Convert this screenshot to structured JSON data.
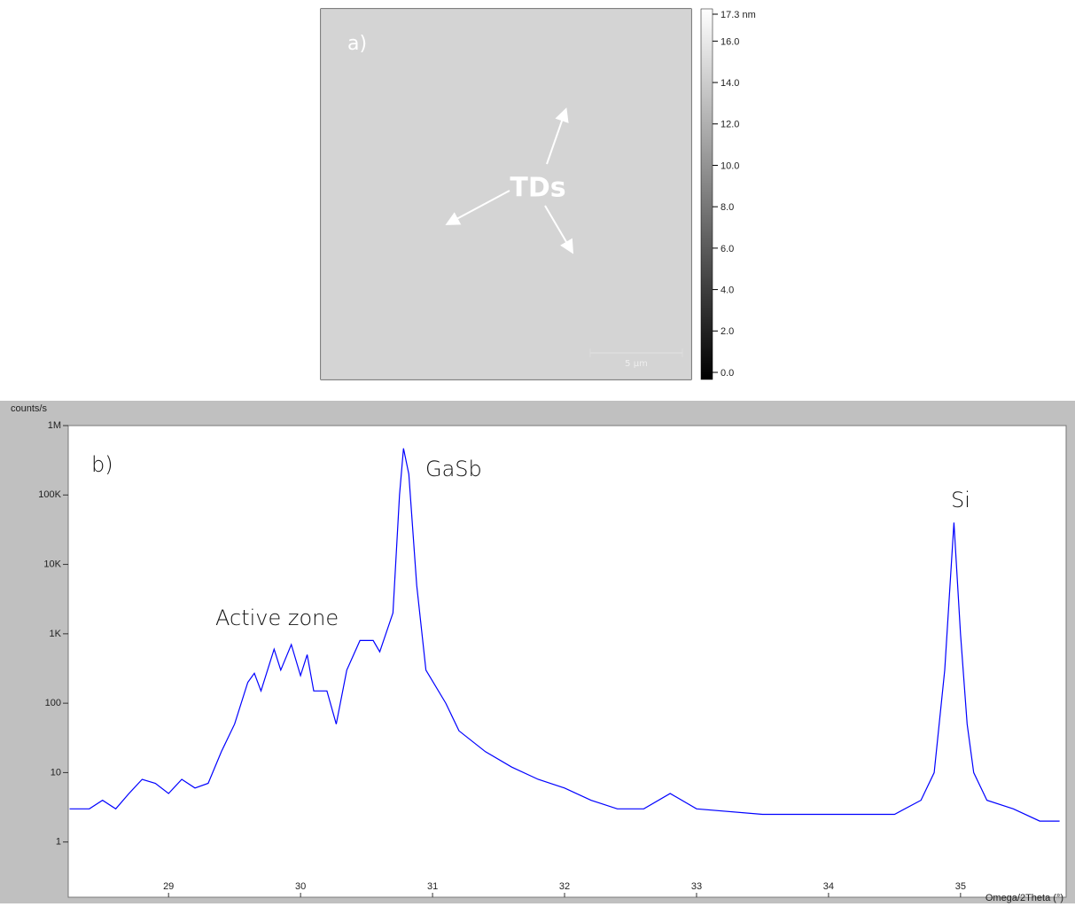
{
  "chart_data": [
    {
      "type": "image",
      "panel_label": "a)",
      "annotation": "TDs",
      "scale_bar": "5 µm",
      "ylim": [
        0,
        17.3
      ],
      "yticks": [
        {
          "value": 0,
          "label": "0.0"
        },
        {
          "value": 2,
          "label": "2.0"
        },
        {
          "value": 4,
          "label": "4.0"
        },
        {
          "value": 6,
          "label": "6.0"
        },
        {
          "value": 8,
          "label": "8.0"
        },
        {
          "value": 10,
          "label": "10.0"
        },
        {
          "value": 12,
          "label": "12.0"
        },
        {
          "value": 14,
          "label": "14.0"
        },
        {
          "value": 16,
          "label": "16.0"
        },
        {
          "value": 17.3,
          "label": "17.3 nm"
        }
      ]
    },
    {
      "type": "line",
      "panel_label": "b)",
      "ylabel": "counts/s",
      "xlabel": "Omega/2Theta (°)",
      "annotations": [
        "GaSb",
        "Si",
        "Active zone"
      ],
      "log_y": true,
      "color": "#0000ff",
      "xlim": [
        28.24,
        35.8
      ],
      "ylim": [
        0.16,
        1000000
      ],
      "xticks": [
        29,
        30,
        31,
        32,
        33,
        34,
        35
      ],
      "yticks": [
        1,
        10,
        100,
        {
          "value": 1000,
          "label": "1K"
        },
        {
          "value": 10000,
          "label": "10K"
        },
        {
          "value": 100000,
          "label": "100K"
        },
        {
          "value": 1000000,
          "label": "1M"
        }
      ],
      "x": [
        28.25,
        28.4,
        28.5,
        28.6,
        28.7,
        28.8,
        28.9,
        29.0,
        29.1,
        29.2,
        29.3,
        29.4,
        29.5,
        29.6,
        29.65,
        29.7,
        29.8,
        29.85,
        29.93,
        30.0,
        30.05,
        30.1,
        30.2,
        30.27,
        30.35,
        30.45,
        30.55,
        30.6,
        30.7,
        30.75,
        30.78,
        30.82,
        30.88,
        30.95,
        31.1,
        31.2,
        31.4,
        31.6,
        31.8,
        32.0,
        32.2,
        32.4,
        32.6,
        32.8,
        33.0,
        33.5,
        34.0,
        34.5,
        34.7,
        34.8,
        34.88,
        34.95,
        35.0,
        35.05,
        35.1,
        35.2,
        35.4,
        35.6,
        35.75
      ],
      "values": [
        3,
        3,
        4,
        3,
        5,
        8,
        7,
        5,
        8,
        6,
        7,
        20,
        50,
        200,
        270,
        150,
        600,
        300,
        700,
        250,
        500,
        150,
        150,
        50,
        300,
        800,
        800,
        550,
        2000,
        100000,
        470000,
        200000,
        5000,
        300,
        100,
        40,
        20,
        12,
        8,
        6,
        4,
        3,
        3,
        5,
        3,
        2.5,
        2.5,
        2.5,
        4,
        10,
        300,
        40000,
        1000,
        50,
        10,
        4,
        3,
        2,
        2
      ]
    }
  ]
}
